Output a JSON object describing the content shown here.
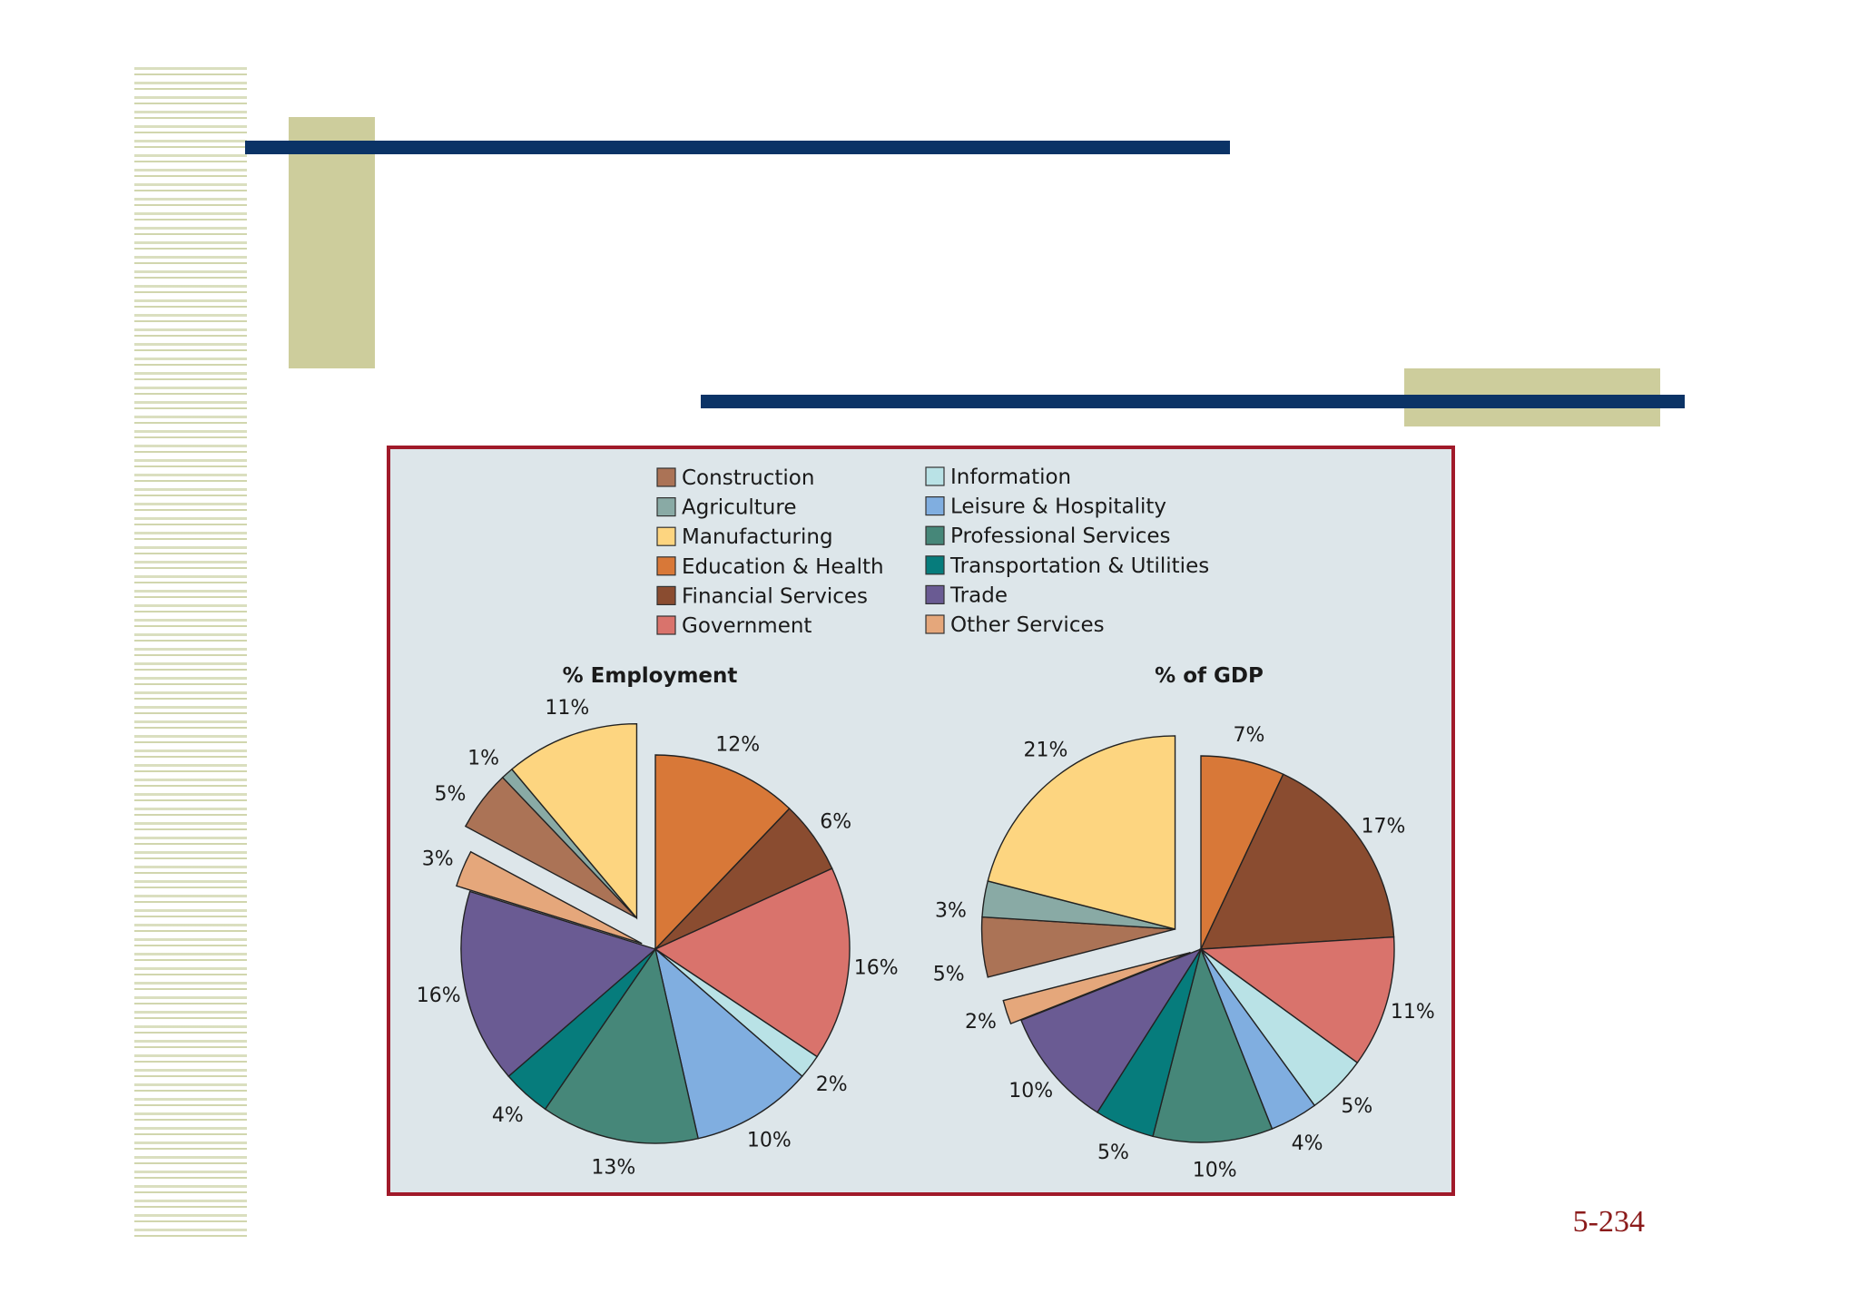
{
  "slide": {
    "page_number": "5-234"
  },
  "legend": {
    "left": [
      "Construction",
      "Agriculture",
      "Manufacturing",
      "Education & Health",
      "Financial Services",
      "Government"
    ],
    "right": [
      "Information",
      "Leisure & Hospitality",
      "Professional Services",
      "Transportation & Utilities",
      "Trade",
      "Other Services"
    ]
  },
  "colors": {
    "Construction": "#ab7356",
    "Agriculture": "#89aaa5",
    "Manufacturing": "#fdd580",
    "Education & Health": "#d87838",
    "Financial Services": "#8a4c30",
    "Government": "#d9736c",
    "Information": "#b9e2e6",
    "Leisure & Hospitality": "#80aee0",
    "Professional Services": "#468779",
    "Transportation & Utilities": "#067c7c",
    "Trade": "#6a5b93",
    "Other Services": "#e5a77b"
  },
  "chart_data": [
    {
      "type": "pie",
      "title": "% Employment",
      "slices": [
        {
          "label": "Education & Health",
          "value": 12,
          "text": "12%"
        },
        {
          "label": "Financial Services",
          "value": 6,
          "text": "6%"
        },
        {
          "label": "Government",
          "value": 16,
          "text": "16%"
        },
        {
          "label": "Information",
          "value": 2,
          "text": "2%"
        },
        {
          "label": "Leisure & Hospitality",
          "value": 10,
          "text": "10%"
        },
        {
          "label": "Professional Services",
          "value": 13,
          "text": "13%"
        },
        {
          "label": "Transportation & Utilities",
          "value": 4,
          "text": "4%"
        },
        {
          "label": "Trade",
          "value": 16,
          "text": "16%"
        },
        {
          "label": "Other Services",
          "value": 3,
          "text": "3%"
        },
        {
          "label": "Construction",
          "value": 5,
          "text": "5%"
        },
        {
          "label": "Agriculture",
          "value": 1,
          "text": "1%"
        },
        {
          "label": "Manufacturing",
          "value": 11,
          "text": "11%"
        }
      ]
    },
    {
      "type": "pie",
      "title": "% of GDP",
      "slices": [
        {
          "label": "Education & Health",
          "value": 7,
          "text": "7%"
        },
        {
          "label": "Financial Services",
          "value": 17,
          "text": "17%"
        },
        {
          "label": "Government",
          "value": 11,
          "text": "11%"
        },
        {
          "label": "Information",
          "value": 5,
          "text": "5%"
        },
        {
          "label": "Leisure & Hospitality",
          "value": 4,
          "text": "4%"
        },
        {
          "label": "Professional Services",
          "value": 10,
          "text": "10%"
        },
        {
          "label": "Transportation & Utilities",
          "value": 5,
          "text": "5%"
        },
        {
          "label": "Trade",
          "value": 10,
          "text": "10%"
        },
        {
          "label": "Other Services",
          "value": 2,
          "text": "2%"
        },
        {
          "label": "Construction",
          "value": 5,
          "text": "5%"
        },
        {
          "label": "Agriculture",
          "value": 3,
          "text": "3%"
        },
        {
          "label": "Manufacturing",
          "value": 21,
          "text": "21%"
        }
      ]
    }
  ]
}
